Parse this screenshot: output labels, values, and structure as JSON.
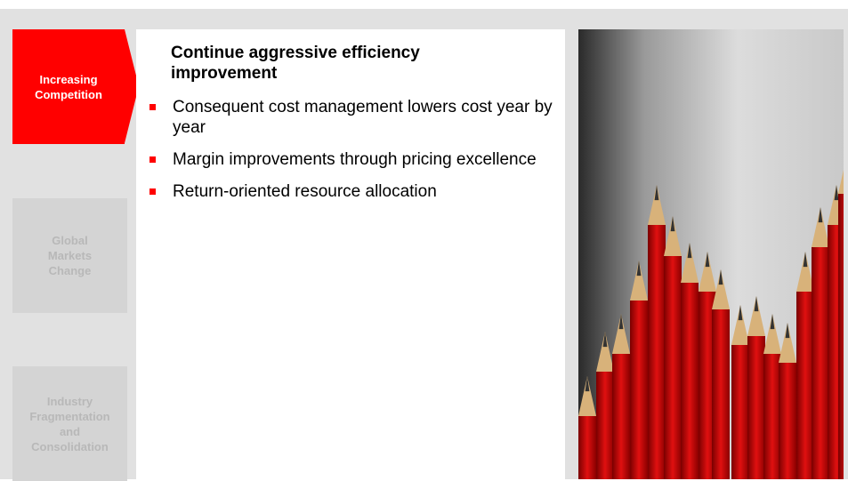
{
  "nav": [
    {
      "label": "Increasing Competition",
      "active": true
    },
    {
      "label": "Global Markets Change",
      "active": false
    },
    {
      "label": "Industry Fragmentation and Consolidation",
      "active": false
    }
  ],
  "content": {
    "heading": "Continue aggressive efficiency improvement",
    "bullets": [
      "Consequent cost management lowers cost year by year",
      "Margin improvements through pricing excellence",
      "Return-oriented resource allocation"
    ]
  }
}
